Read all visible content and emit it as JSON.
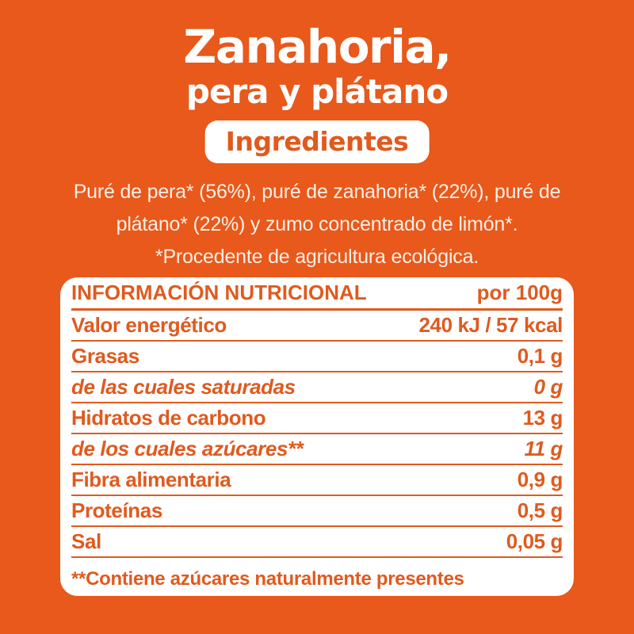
{
  "colors": {
    "background": "#E8591B",
    "accent": "#E05A1E",
    "card": "#FFFFFF",
    "paragraph_text": "#F9EFE7"
  },
  "header": {
    "title_line1": "Zanahoria,",
    "title_line2": "pera y plátano",
    "badge": "Ingredientes"
  },
  "ingredients": {
    "line1": "Puré de pera* (56%), puré de zanahoria* (22%), puré de",
    "line2": "plátano* (22%) y zumo concentrado de limón*.",
    "line3": "*Procedente de agricultura ecológica."
  },
  "nutrition_table": {
    "header": {
      "title": "INFORMACIÓN NUTRICIONAL",
      "unit": "por 100g"
    },
    "rows": [
      {
        "label": "Valor energético",
        "value": "240 kJ / 57 kcal",
        "italic": false
      },
      {
        "label": "Grasas",
        "value": "0,1 g",
        "italic": false
      },
      {
        "label": "de las cuales saturadas",
        "value": "0 g",
        "italic": true
      },
      {
        "label": "Hidratos de carbono",
        "value": "13 g",
        "italic": false
      },
      {
        "label": "de los cuales azúcares**",
        "value": "11 g",
        "italic": true
      },
      {
        "label": "Fibra alimentaria",
        "value": "0,9 g",
        "italic": false
      },
      {
        "label": "Proteínas",
        "value": "0,5 g",
        "italic": false
      },
      {
        "label": "Sal",
        "value": "0,05 g",
        "italic": false
      }
    ],
    "footnote": "**Contiene azúcares naturalmente presentes"
  }
}
